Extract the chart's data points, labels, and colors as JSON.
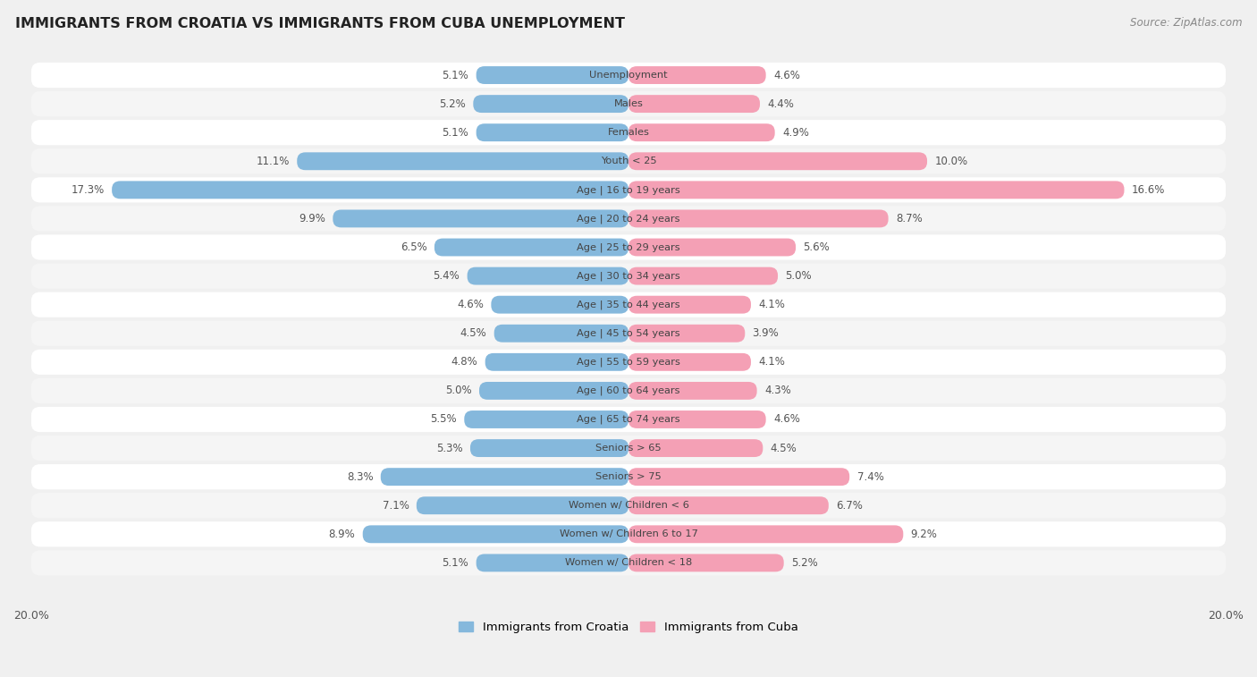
{
  "title": "IMMIGRANTS FROM CROATIA VS IMMIGRANTS FROM CUBA UNEMPLOYMENT",
  "source": "Source: ZipAtlas.com",
  "categories": [
    "Unemployment",
    "Males",
    "Females",
    "Youth < 25",
    "Age | 16 to 19 years",
    "Age | 20 to 24 years",
    "Age | 25 to 29 years",
    "Age | 30 to 34 years",
    "Age | 35 to 44 years",
    "Age | 45 to 54 years",
    "Age | 55 to 59 years",
    "Age | 60 to 64 years",
    "Age | 65 to 74 years",
    "Seniors > 65",
    "Seniors > 75",
    "Women w/ Children < 6",
    "Women w/ Children 6 to 17",
    "Women w/ Children < 18"
  ],
  "croatia_values": [
    5.1,
    5.2,
    5.1,
    11.1,
    17.3,
    9.9,
    6.5,
    5.4,
    4.6,
    4.5,
    4.8,
    5.0,
    5.5,
    5.3,
    8.3,
    7.1,
    8.9,
    5.1
  ],
  "cuba_values": [
    4.6,
    4.4,
    4.9,
    10.0,
    16.6,
    8.7,
    5.6,
    5.0,
    4.1,
    3.9,
    4.1,
    4.3,
    4.6,
    4.5,
    7.4,
    6.7,
    9.2,
    5.2
  ],
  "croatia_color": "#85b8dc",
  "cuba_color": "#f4a0b5",
  "row_color_even": "#f5f5f5",
  "row_color_odd": "#ffffff",
  "background_color": "#f0f0f0",
  "xlim": 20.0,
  "legend_croatia": "Immigrants from Croatia",
  "legend_cuba": "Immigrants from Cuba",
  "value_color": "#555555",
  "label_color": "#555555",
  "title_color": "#222222",
  "source_color": "#888888"
}
